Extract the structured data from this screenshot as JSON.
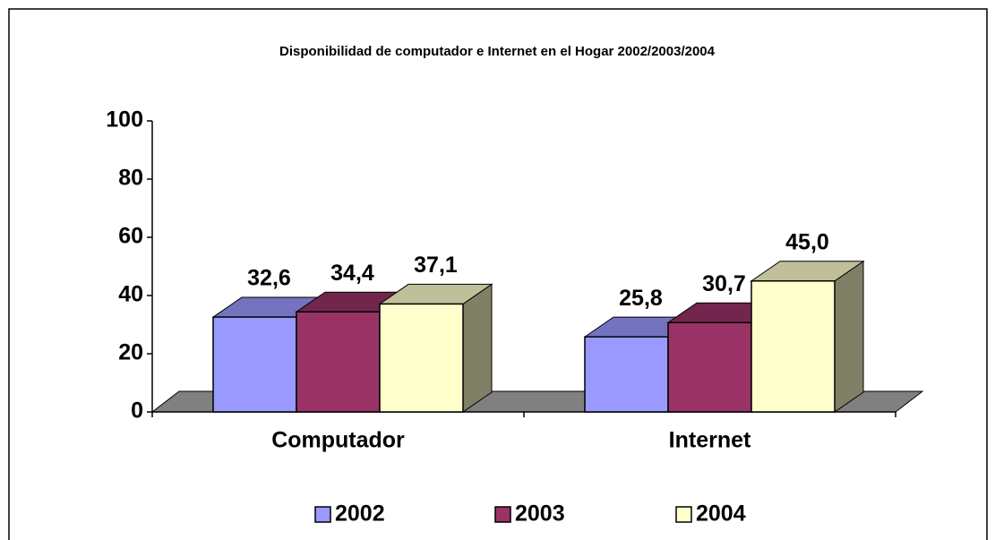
{
  "chart_data": {
    "type": "bar3d",
    "title": "Disponibilidad de computador e Internet en el Hogar 2002/2003/2004",
    "categories": [
      "Computador",
      "Internet"
    ],
    "series": [
      {
        "name": "2002",
        "color": "#9999ff",
        "values": [
          32.6,
          25.8
        ],
        "value_labels": [
          "32,6",
          "25,8"
        ]
      },
      {
        "name": "2003",
        "color": "#993366",
        "values": [
          34.4,
          30.7
        ],
        "value_labels": [
          "34,4",
          "30,7"
        ]
      },
      {
        "name": "2004",
        "color": "#ffffcc",
        "values": [
          37.1,
          45.0
        ],
        "value_labels": [
          "37,1",
          "45,0"
        ]
      }
    ],
    "ylim": [
      0,
      100
    ],
    "yticks": [
      0,
      20,
      40,
      60,
      80,
      100
    ],
    "legend": "bottom"
  }
}
